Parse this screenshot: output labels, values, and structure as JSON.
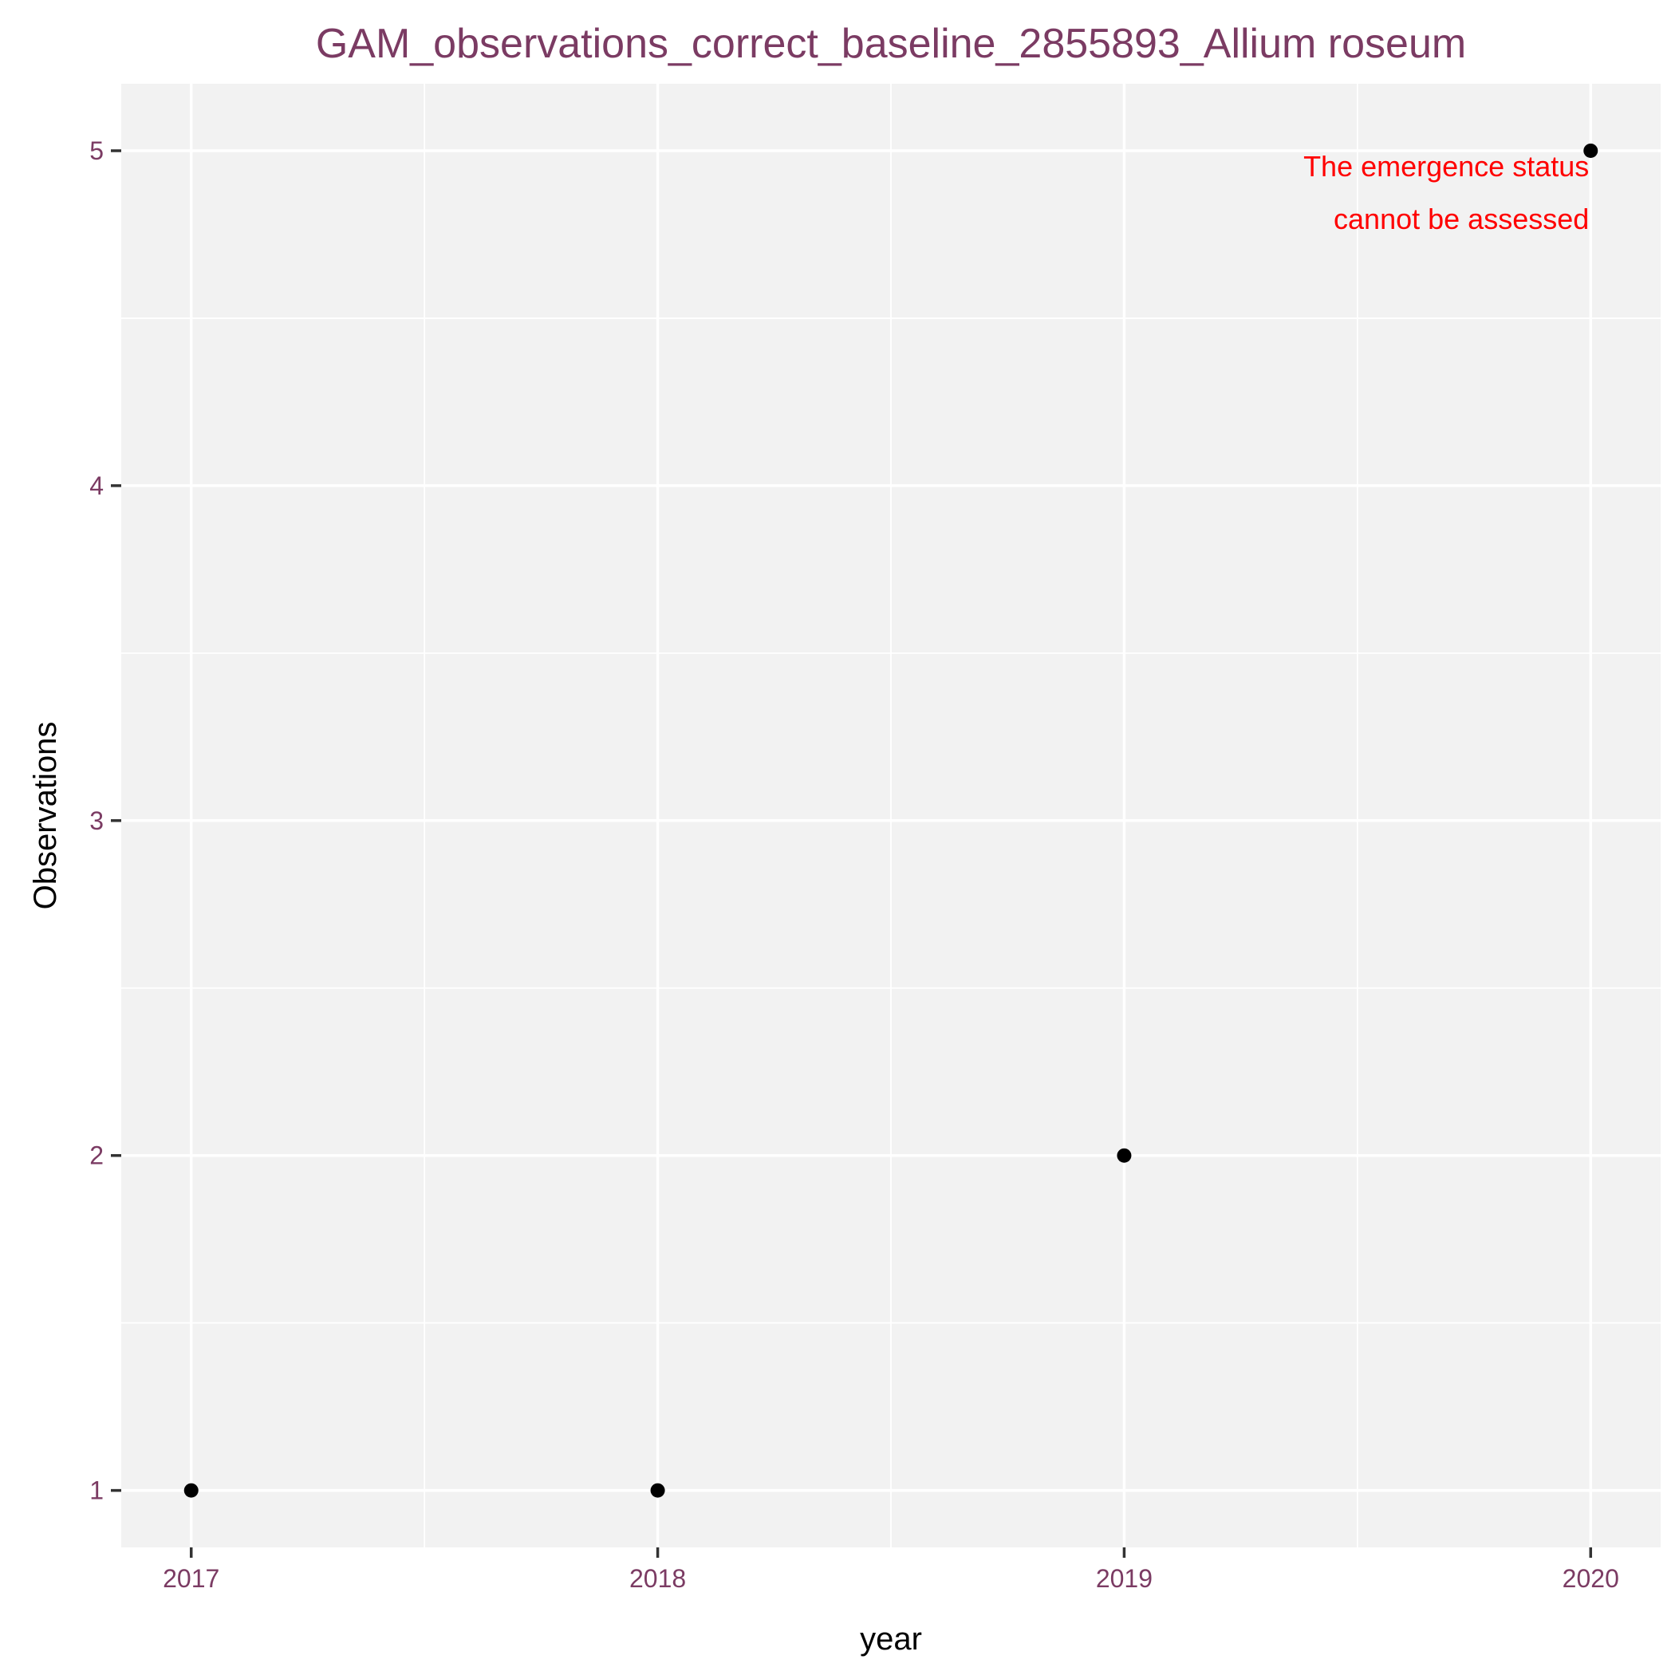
{
  "colors": {
    "title": "#7b3b63",
    "tick_label": "#7b3b63",
    "annotation": "#ff0000",
    "point": "#000000",
    "panel": "#f2f2f2"
  },
  "chart_data": {
    "type": "scatter",
    "title": "GAM_observations_correct_baseline_2855893_Allium roseum",
    "xlabel": "year",
    "ylabel": "Observations",
    "x": [
      2017,
      2018,
      2019,
      2020
    ],
    "y": [
      1,
      1,
      2,
      5
    ],
    "xlim": [
      2016.85,
      2020.15
    ],
    "ylim": [
      0.83,
      5.2
    ],
    "x_ticks": [
      2017,
      2018,
      2019,
      2020
    ],
    "y_ticks": [
      1,
      2,
      3,
      4,
      5
    ],
    "grid": true,
    "legend": "none",
    "annotation": {
      "lines": [
        "The emergence status",
        "cannot be assessed"
      ],
      "anchor_x": 2020,
      "anchor_y": 5
    }
  }
}
